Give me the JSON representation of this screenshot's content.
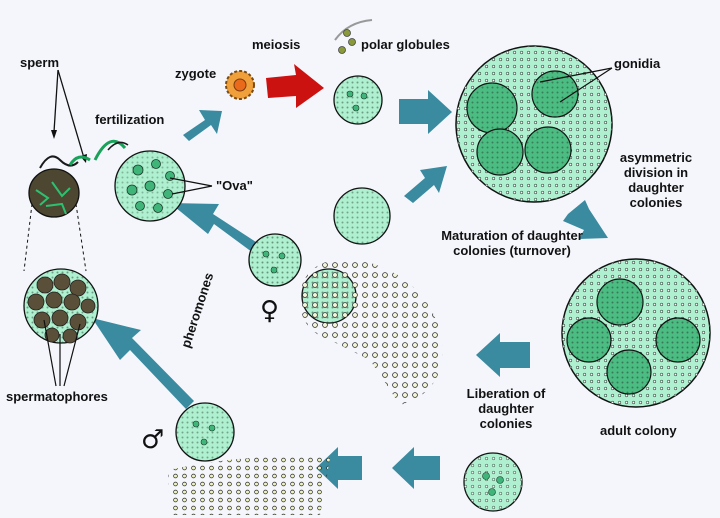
{
  "labels": {
    "sperm": "sperm",
    "fertilization": "fertilization",
    "zygote": "zygote",
    "meiosis": "meiosis",
    "polar_globules": "polar globules",
    "gonidia": "gonidia",
    "ova": "\"Ova\"",
    "asymmetric_division": "asymmetric division in daughter colonies",
    "maturation": "Maturation of daughter colonies (turnover)",
    "pheromones": "pheromones",
    "female_symbol": "♀",
    "male_symbol": "♂",
    "spermatophores": "spermatophores",
    "adult_colony": "adult colony",
    "liberation": "Liberation of daughter colonies"
  },
  "colors": {
    "background": "#f4f6fb",
    "colony_fill": "#aef0cf",
    "colony_dots": "#2e4a3a",
    "gonidium_fill": "#4bbd82",
    "arrow_teal": "#3a8aa0",
    "arrow_red": "#cc1111",
    "zygote_orange": "#f0a03a",
    "spermatophore_brown": "#5a4f38"
  }
}
